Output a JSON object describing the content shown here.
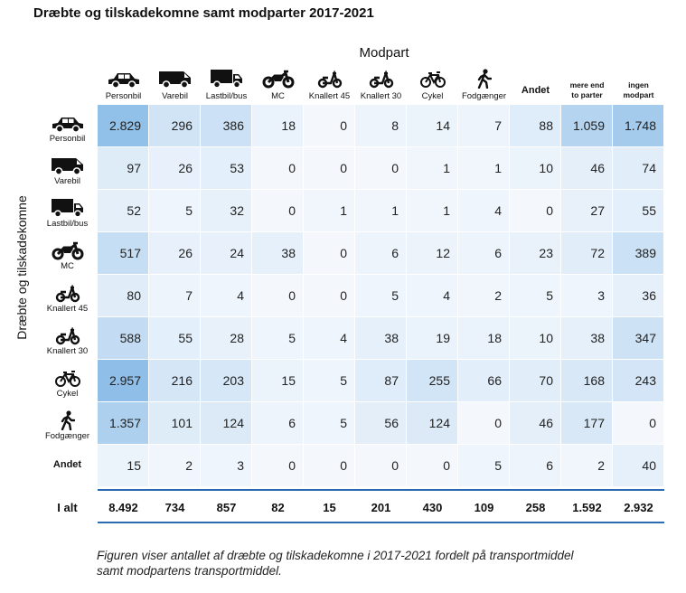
{
  "title": "Dræbte og tilskadekomne samt modparter 2017-2021",
  "col_axis_title": "Modpart",
  "row_axis_title": "Dræbte og tilskadekomne",
  "total_label": "I alt",
  "caption_line1": "Figuren viser antallet af dræbte og tilskadekomne i 2017-2021 fordelt på transportmiddel",
  "caption_line2": "samt modpartens transportmiddel.",
  "colors": {
    "low": "#f4f8fd",
    "high": "#8fbfe8",
    "rule": "#2b6cb0"
  },
  "columns": [
    {
      "label": "Personbil",
      "icon": "car-icon"
    },
    {
      "label": "Varebil",
      "icon": "van-icon"
    },
    {
      "label": "Lastbil/bus",
      "icon": "truck-icon"
    },
    {
      "label": "MC",
      "icon": "motorcycle-icon"
    },
    {
      "label": "Knallert 45",
      "icon": "moped-icon"
    },
    {
      "label": "Knallert 30",
      "icon": "moped-icon"
    },
    {
      "label": "Cykel",
      "icon": "bicycle-icon"
    },
    {
      "label": "Fodgænger",
      "icon": "pedestrian-icon"
    },
    {
      "label": "Andet",
      "icon": ""
    },
    {
      "label_l1": "mere end",
      "label_l2": "to parter",
      "icon": ""
    },
    {
      "label_l1": "ingen",
      "label_l2": "modpart",
      "icon": ""
    }
  ],
  "rows": [
    {
      "label": "Personbil",
      "icon": "car-icon"
    },
    {
      "label": "Varebil",
      "icon": "van-icon"
    },
    {
      "label": "Lastbil/bus",
      "icon": "truck-icon"
    },
    {
      "label": "MC",
      "icon": "motorcycle-icon"
    },
    {
      "label": "Knallert 45",
      "icon": "moped-icon"
    },
    {
      "label": "Knallert 30",
      "icon": "moped-icon"
    },
    {
      "label": "Cykel",
      "icon": "bicycle-icon"
    },
    {
      "label": "Fodgænger",
      "icon": "pedestrian-icon"
    },
    {
      "label": "Andet",
      "icon": ""
    }
  ],
  "chart_data": {
    "type": "heatmap",
    "title": "Dræbte og tilskadekomne samt modparter 2017-2021",
    "xlabel": "Modpart",
    "ylabel": "Dræbte og tilskadekomne",
    "x_categories": [
      "Personbil",
      "Varebil",
      "Lastbil/bus",
      "MC",
      "Knallert 45",
      "Knallert 30",
      "Cykel",
      "Fodgænger",
      "Andet",
      "mere end to parter",
      "ingen modpart"
    ],
    "y_categories": [
      "Personbil",
      "Varebil",
      "Lastbil/bus",
      "MC",
      "Knallert 45",
      "Knallert 30",
      "Cykel",
      "Fodgænger",
      "Andet"
    ],
    "values": [
      [
        2829,
        296,
        386,
        18,
        0,
        8,
        14,
        7,
        88,
        1059,
        1748
      ],
      [
        97,
        26,
        53,
        0,
        0,
        0,
        1,
        1,
        10,
        46,
        74
      ],
      [
        52,
        5,
        32,
        0,
        1,
        1,
        1,
        4,
        0,
        27,
        55
      ],
      [
        517,
        26,
        24,
        38,
        0,
        6,
        12,
        6,
        23,
        72,
        389
      ],
      [
        80,
        7,
        4,
        0,
        0,
        5,
        4,
        2,
        5,
        3,
        36
      ],
      [
        588,
        55,
        28,
        5,
        4,
        38,
        19,
        18,
        10,
        38,
        347
      ],
      [
        2957,
        216,
        203,
        15,
        5,
        87,
        255,
        66,
        70,
        168,
        243
      ],
      [
        1357,
        101,
        124,
        6,
        5,
        56,
        124,
        0,
        46,
        177,
        0
      ],
      [
        15,
        2,
        3,
        0,
        0,
        0,
        0,
        5,
        6,
        2,
        40
      ]
    ],
    "display_values": [
      [
        "2.829",
        "296",
        "386",
        "18",
        "0",
        "8",
        "14",
        "7",
        "88",
        "1.059",
        "1.748"
      ],
      [
        "97",
        "26",
        "53",
        "0",
        "0",
        "0",
        "1",
        "1",
        "10",
        "46",
        "74"
      ],
      [
        "52",
        "5",
        "32",
        "0",
        "1",
        "1",
        "1",
        "4",
        "0",
        "27",
        "55"
      ],
      [
        "517",
        "26",
        "24",
        "38",
        "0",
        "6",
        "12",
        "6",
        "23",
        "72",
        "389"
      ],
      [
        "80",
        "7",
        "4",
        "0",
        "0",
        "5",
        "4",
        "2",
        "5",
        "3",
        "36"
      ],
      [
        "588",
        "55",
        "28",
        "5",
        "4",
        "38",
        "19",
        "18",
        "10",
        "38",
        "347"
      ],
      [
        "2.957",
        "216",
        "203",
        "15",
        "5",
        "87",
        "255",
        "66",
        "70",
        "168",
        "243"
      ],
      [
        "1.357",
        "101",
        "124",
        "6",
        "5",
        "56",
        "124",
        "0",
        "46",
        "177",
        "0"
      ],
      [
        "15",
        "2",
        "3",
        "0",
        "0",
        "0",
        "0",
        "5",
        "6",
        "2",
        "40"
      ]
    ],
    "totals": [
      "8.492",
      "734",
      "857",
      "82",
      "15",
      "201",
      "430",
      "109",
      "258",
      "1.592",
      "2.932"
    ]
  }
}
